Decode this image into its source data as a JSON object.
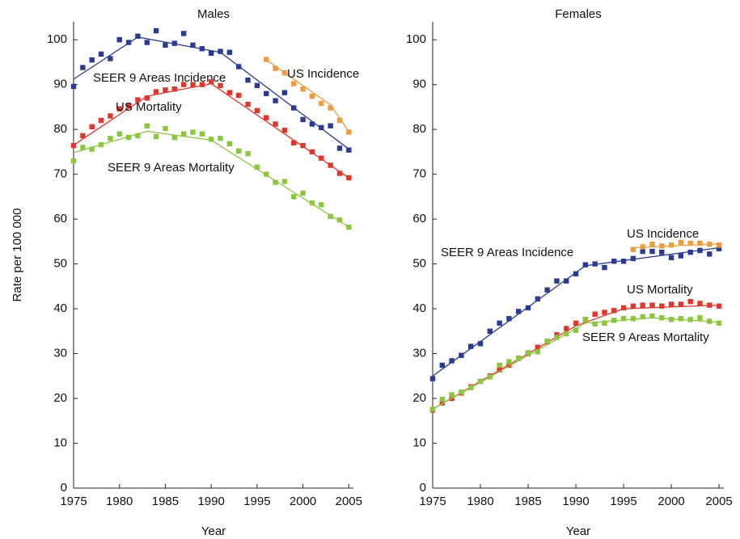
{
  "chart_data": [
    {
      "type": "scatter",
      "title": "Males",
      "x_label": "Year",
      "y_label": "Rate per 100 000",
      "x": [
        1975,
        1976,
        1977,
        1978,
        1979,
        1980,
        1981,
        1982,
        1983,
        1984,
        1985,
        1986,
        1987,
        1988,
        1989,
        1990,
        1991,
        1992,
        1993,
        1994,
        1995,
        1996,
        1997,
        1998,
        1999,
        2000,
        2001,
        2002,
        2003,
        2004,
        2005
      ],
      "xlim": [
        1975,
        2005.5
      ],
      "xticks": [
        1975,
        1980,
        1985,
        1990,
        1995,
        2000,
        2005
      ],
      "ylim": [
        0,
        104
      ],
      "yticks": [
        0,
        10,
        20,
        30,
        40,
        50,
        60,
        70,
        80,
        90,
        100
      ],
      "series": [
        {
          "name": "SEER 9 Areas Incidence",
          "color": "#2b3a92",
          "values": [
            89.6,
            93.8,
            95.5,
            96.8,
            95.8,
            100,
            99.4,
            100.8,
            99.4,
            102,
            98.8,
            99.2,
            101.4,
            98.8,
            98,
            97,
            97.4,
            97.2,
            94,
            91,
            89.8,
            88,
            86.4,
            88.2,
            84.8,
            82.2,
            81.2,
            80.4,
            80.8,
            75.8,
            75.4
          ],
          "fit_x": [
            1975,
            1982,
            1991,
            2005
          ],
          "fit_values": [
            91.2,
            100.6,
            97.2,
            75.6
          ]
        },
        {
          "name": "US Incidence",
          "color": "#ee9b3e",
          "x": [
            1996,
            1997,
            1998,
            1999,
            2000,
            2001,
            2002,
            2003,
            2004,
            2005
          ],
          "values": [
            95.6,
            93.6,
            92.6,
            90.2,
            89,
            87.4,
            85.8,
            84.8,
            82,
            79.4
          ],
          "fit_x": [
            1996,
            2003,
            2005
          ],
          "fit_values": [
            95.5,
            85.5,
            79.5
          ]
        },
        {
          "name": "US Mortality",
          "color": "#e0362c",
          "values": [
            76.4,
            78.6,
            80.6,
            82,
            83,
            84.6,
            85.2,
            86.6,
            87,
            88.4,
            88.8,
            89,
            90,
            90,
            90,
            90.6,
            89.8,
            88.2,
            87.6,
            85.6,
            84.2,
            82.6,
            81.2,
            79.8,
            77,
            76.4,
            75,
            73.6,
            72,
            70.2,
            69.2
          ],
          "fit_x": [
            1975,
            1983,
            1990,
            2005
          ],
          "fit_values": [
            76.5,
            87.4,
            90.2,
            69.2
          ]
        },
        {
          "name": "SEER 9 Areas Mortality",
          "color": "#8cc63e",
          "values": [
            73,
            76,
            75.6,
            76.6,
            78,
            79,
            78.2,
            78.6,
            80.8,
            78.4,
            80.2,
            78.2,
            79,
            79.4,
            79,
            77.8,
            78,
            76.8,
            75.2,
            74.6,
            71.6,
            70,
            68.2,
            68.4,
            65,
            65.8,
            63.6,
            63.2,
            60.6,
            59.8,
            58.2
          ],
          "fit_x": [
            1975,
            1983,
            1990,
            2005
          ],
          "fit_values": [
            74.8,
            79.6,
            77.6,
            58.2
          ]
        }
      ]
    },
    {
      "type": "scatter",
      "title": "Females",
      "x_label": "Year",
      "x": [
        1975,
        1976,
        1977,
        1978,
        1979,
        1980,
        1981,
        1982,
        1983,
        1984,
        1985,
        1986,
        1987,
        1988,
        1989,
        1990,
        1991,
        1992,
        1993,
        1994,
        1995,
        1996,
        1997,
        1998,
        1999,
        2000,
        2001,
        2002,
        2003,
        2004,
        2005
      ],
      "xlim": [
        1975,
        2005.5
      ],
      "xticks": [
        1975,
        1980,
        1985,
        1990,
        1995,
        2000,
        2005
      ],
      "ylim": [
        0,
        104
      ],
      "yticks": [
        0,
        10,
        20,
        30,
        40,
        50,
        60,
        70,
        80,
        90,
        100
      ],
      "series": [
        {
          "name": "SEER 9 Areas Incidence",
          "color": "#2b3a92",
          "values": [
            24.4,
            27.4,
            28.4,
            29.6,
            31.6,
            32.2,
            35,
            36.8,
            37.8,
            39.4,
            40.2,
            42.2,
            44.2,
            46.2,
            46.2,
            47.8,
            49.8,
            50,
            49.2,
            50.6,
            50.6,
            51.2,
            52.8,
            52.8,
            52.6,
            51.4,
            51.8,
            52.6,
            53,
            52.2,
            53.4
          ],
          "fit_x": [
            1975,
            1991,
            2005
          ],
          "fit_values": [
            25,
            49.6,
            53.6
          ]
        },
        {
          "name": "US Incidence",
          "color": "#ee9b3e",
          "x": [
            1996,
            1997,
            1998,
            1999,
            2000,
            2001,
            2002,
            2003,
            2004,
            2005
          ],
          "values": [
            53.2,
            53.8,
            54.4,
            54,
            54.2,
            54.8,
            54.6,
            54.6,
            54.4,
            54.2
          ],
          "fit_x": [
            1996,
            2005
          ],
          "fit_values": [
            53.6,
            54.5
          ]
        },
        {
          "name": "US Mortality",
          "color": "#e0362c",
          "values": [
            17.4,
            19,
            20,
            21.2,
            22.6,
            23.8,
            25,
            26.4,
            27.4,
            29,
            30,
            31.4,
            32.6,
            34.2,
            35.6,
            36.8,
            37.6,
            38.8,
            39.2,
            39.6,
            40.2,
            40.6,
            40.8,
            40.8,
            40.6,
            41,
            41,
            41.6,
            41.2,
            40.8,
            40.6
          ],
          "fit_x": [
            1975,
            1990,
            1995,
            2005
          ],
          "fit_values": [
            17.6,
            36.2,
            40,
            40.8
          ]
        },
        {
          "name": "SEER 9 Areas Mortality",
          "color": "#8cc63e",
          "values": [
            17.6,
            19.8,
            20.8,
            21.4,
            22.4,
            23.8,
            24.8,
            27.4,
            28.2,
            29,
            30.2,
            30.4,
            32.8,
            33.6,
            34.4,
            35.2,
            37.6,
            36.6,
            36.8,
            37.4,
            37.8,
            37.8,
            38.2,
            38.4,
            38,
            37.6,
            37.8,
            37.6,
            38,
            37.2,
            36.8
          ],
          "fit_x": [
            1975,
            1991,
            1998,
            2005
          ],
          "fit_values": [
            17.6,
            36.8,
            38,
            37
          ]
        }
      ]
    }
  ]
}
